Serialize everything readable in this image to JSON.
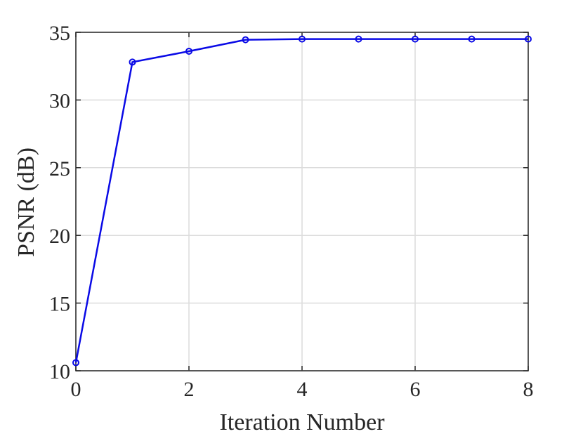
{
  "chart_data": {
    "type": "line",
    "x": [
      0,
      1,
      2,
      3,
      4,
      5,
      6,
      7,
      8
    ],
    "series": [
      {
        "color": "#0a0ae6",
        "values": [
          10.6,
          32.8,
          33.6,
          34.45,
          34.5,
          34.5,
          34.5,
          34.5,
          34.5
        ]
      }
    ],
    "xlabel": "Iteration Number",
    "ylabel": "PSNR (dB)",
    "xlim": [
      0,
      8
    ],
    "ylim": [
      10,
      35
    ],
    "xticks": [
      0,
      2,
      4,
      6,
      8
    ],
    "yticks": [
      10,
      15,
      20,
      25,
      30,
      35
    ],
    "grid": true,
    "markers": true
  }
}
